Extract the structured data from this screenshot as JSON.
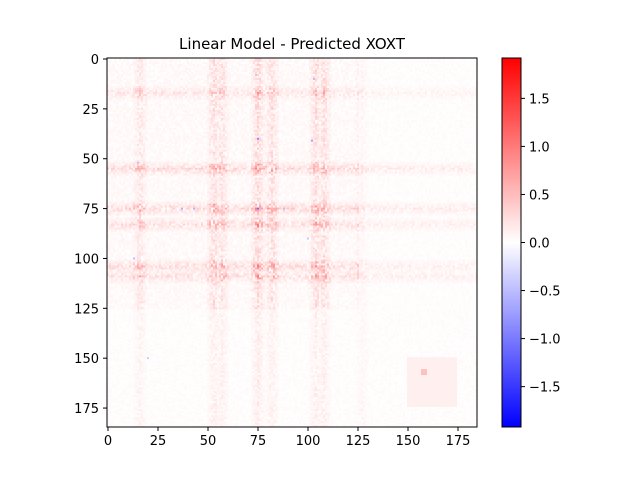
{
  "chart_data": {
    "type": "heatmap",
    "title": "Linear Model - Predicted XOXT",
    "xlabel": "",
    "ylabel": "",
    "n_rows": 185,
    "n_cols": 185,
    "xlim": [
      -0.5,
      184.5
    ],
    "ylim": [
      184.5,
      -0.5
    ],
    "x_ticks": [
      0,
      25,
      50,
      75,
      100,
      125,
      150,
      175
    ],
    "y_ticks": [
      0,
      25,
      50,
      75,
      100,
      125,
      150,
      175
    ],
    "colormap": "bwr",
    "colormap_colors": {
      "low": "#0000ff",
      "mid": "#ffffff",
      "high": "#ff0000"
    },
    "vmin": -1.92,
    "vmax": 1.92,
    "colorbar_ticks": [
      -1.5,
      -1.0,
      -0.5,
      0.0,
      0.5,
      1.0,
      1.5
    ],
    "colorbar_tick_labels": [
      "−1.5",
      "−1.0",
      "−0.5",
      "0.0",
      "0.5",
      "1.0",
      "1.5"
    ],
    "grid": false,
    "pattern_description_values": {
      "background_value": 0.05,
      "row_band_peaks": [
        [
          17,
          0.4
        ],
        [
          55,
          0.7
        ],
        [
          75,
          0.7
        ],
        [
          83,
          0.55
        ],
        [
          104,
          0.6
        ],
        [
          109,
          0.55
        ]
      ],
      "col_band_peaks": [
        [
          16,
          0.45
        ],
        [
          53,
          0.6
        ],
        [
          57,
          0.55
        ],
        [
          75,
          0.75
        ],
        [
          82,
          0.6
        ],
        [
          104,
          0.6
        ],
        [
          108,
          0.6
        ],
        [
          127,
          0.3
        ]
      ],
      "uniform_block": {
        "rows": [
          150,
          174
        ],
        "cols": [
          150,
          174
        ],
        "value": 0.12
      },
      "hot_cell": {
        "row": 157,
        "col": 158,
        "value": 0.5
      },
      "negative_cells": [
        [
          75,
          75,
          -1.1
        ],
        [
          8,
          74,
          -0.4
        ],
        [
          40,
          75,
          -0.9
        ],
        [
          75,
          37,
          -0.6
        ],
        [
          75,
          43,
          -0.6
        ],
        [
          75,
          88,
          -0.5
        ],
        [
          10,
          103,
          -0.5
        ],
        [
          41,
          102,
          -0.7
        ],
        [
          52,
          15,
          -0.5
        ],
        [
          100,
          13,
          -0.5
        ],
        [
          150,
          20,
          -0.4
        ],
        [
          90,
          100,
          -0.4
        ]
      ]
    }
  }
}
